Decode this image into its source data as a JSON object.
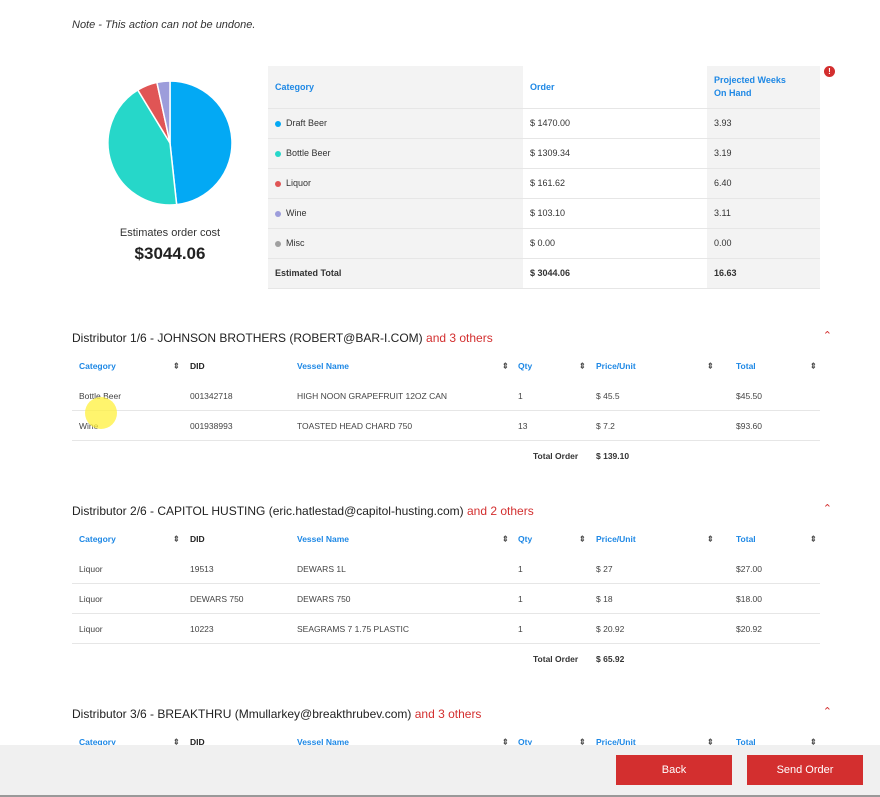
{
  "note": "Note - This action can not be undone.",
  "summary": {
    "estimate_label": "Estimates order cost",
    "estimate_value": "$3044.06",
    "headers": [
      "Category",
      "Order",
      "Projected Weeks On Hand"
    ],
    "rows": [
      {
        "category": "Draft Beer",
        "order": "$ 1470.00",
        "weeks": "3.93",
        "color": "#03a9f4",
        "value": 1470.0
      },
      {
        "category": "Bottle Beer",
        "order": "$ 1309.34",
        "weeks": "3.19",
        "color": "#26d7c9",
        "value": 1309.34
      },
      {
        "category": "Liquor",
        "order": "$ 161.62",
        "weeks": "6.40",
        "color": "#e05555",
        "value": 161.62
      },
      {
        "category": "Wine",
        "order": "$ 103.10",
        "weeks": "3.11",
        "color": "#9d9ddb",
        "value": 103.1
      },
      {
        "category": "Misc",
        "order": "$ 0.00",
        "weeks": "0.00",
        "color": "#a0a0a0",
        "value": 0
      }
    ],
    "total": {
      "label": "Estimated Total",
      "order": "$ 3044.06",
      "weeks": "16.63"
    },
    "info_icon": "!"
  },
  "columns": [
    "Category",
    "DID",
    "Vessel Name",
    "Qty",
    "Price/Unit",
    "Total"
  ],
  "total_order_label": "Total Order",
  "distributors": [
    {
      "title": "Distributor 1/6 - JOHNSON BROTHERS (ROBERT@BAR-I.COM)",
      "others": "and 3 others",
      "total": "$ 139.10",
      "rows": [
        [
          "Bottle Beer",
          "001342718",
          "HIGH NOON GRAPEFRUIT 12OZ CAN",
          "1",
          "$ 45.5",
          "$45.50"
        ],
        [
          "Wine",
          "001938993",
          "TOASTED HEAD CHARD 750",
          "13",
          "$ 7.2",
          "$93.60"
        ]
      ]
    },
    {
      "title": "Distributor 2/6 - CAPITOL HUSTING (eric.hatlestad@capitol-husting.com)",
      "others": "and 2 others",
      "total": "$ 65.92",
      "rows": [
        [
          "Liquor",
          "19513",
          "DEWARS 1L",
          "1",
          "$ 27",
          "$27.00"
        ],
        [
          "Liquor",
          "DEWARS 750",
          "DEWARS 750",
          "1",
          "$ 18",
          "$18.00"
        ],
        [
          "Liquor",
          "10223",
          "SEAGRAMS 7 1.75 PLASTIC",
          "1",
          "$ 20.92",
          "$20.92"
        ]
      ]
    },
    {
      "title": "Distributor 3/6 - BREAKTHRU (Mmullarkey@breakthrubev.com)",
      "others": "and 3 others",
      "total": null,
      "rows": []
    }
  ],
  "footer": {
    "back": "Back",
    "send": "Send Order"
  },
  "colors": {
    "accent": "#d32f2f",
    "link": "#1e88e5"
  }
}
